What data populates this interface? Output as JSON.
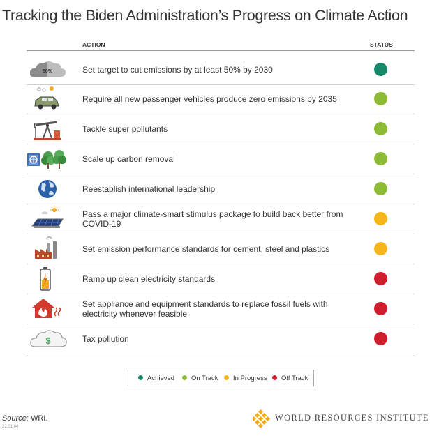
{
  "title": "Tracking the Biden Administration’s Progress on Climate Action",
  "headers": {
    "action": "ACTION",
    "status": "STATUS"
  },
  "colors": {
    "achieved": "#16896a",
    "on_track": "#8ebb35",
    "in_progress": "#f6b51a",
    "off_track": "#cf1e2d"
  },
  "chart_data": {
    "type": "table",
    "title": "Tracking the Biden Administration’s Progress on Climate Action",
    "columns": [
      "ACTION",
      "STATUS"
    ],
    "rows": [
      {
        "icon": "cloud-50-percent-icon",
        "icon_text": "50%",
        "action": "Set target to cut emissions by at least 50% by 2030",
        "status": "Achieved"
      },
      {
        "icon": "electric-car-icon",
        "action": "Require all new passenger vehicles produce zero emissions by 2035",
        "status": "On Track"
      },
      {
        "icon": "oil-pump-icon",
        "action": "Tackle super pollutants",
        "status": "On Track"
      },
      {
        "icon": "carbon-removal-trees-icon",
        "action": "Scale up carbon removal",
        "status": "On Track"
      },
      {
        "icon": "globe-icon",
        "action": "Reestablish international leadership",
        "status": "On Track"
      },
      {
        "icon": "solar-panel-icon",
        "action": "Pass a major climate-smart stimulus package to build back better from COVID-19",
        "status": "In Progress"
      },
      {
        "icon": "factory-icon",
        "action": "Set emission performance standards for cement, steel and plastics",
        "status": "In Progress"
      },
      {
        "icon": "battery-icon",
        "action": "Ramp up clean electricity standards",
        "status": "Off Track"
      },
      {
        "icon": "house-heat-icon",
        "action": "Set appliance and equipment standards to replace fossil fuels with electricity whenever feasible",
        "status": "Off Track"
      },
      {
        "icon": "dollar-cloud-icon",
        "action": "Tax pollution",
        "status": "Off Track"
      }
    ],
    "legend": [
      {
        "label": "Achieved",
        "color": "#16896a"
      },
      {
        "label": "On Track",
        "color": "#8ebb35"
      },
      {
        "label": "In Progress",
        "color": "#f6b51a"
      },
      {
        "label": "Off Track",
        "color": "#cf1e2d"
      }
    ]
  },
  "source": {
    "label": "Source:",
    "text": " WRI."
  },
  "code": "22.01.04",
  "logo": {
    "text": "WORLD RESOURCES INSTITUTE"
  }
}
